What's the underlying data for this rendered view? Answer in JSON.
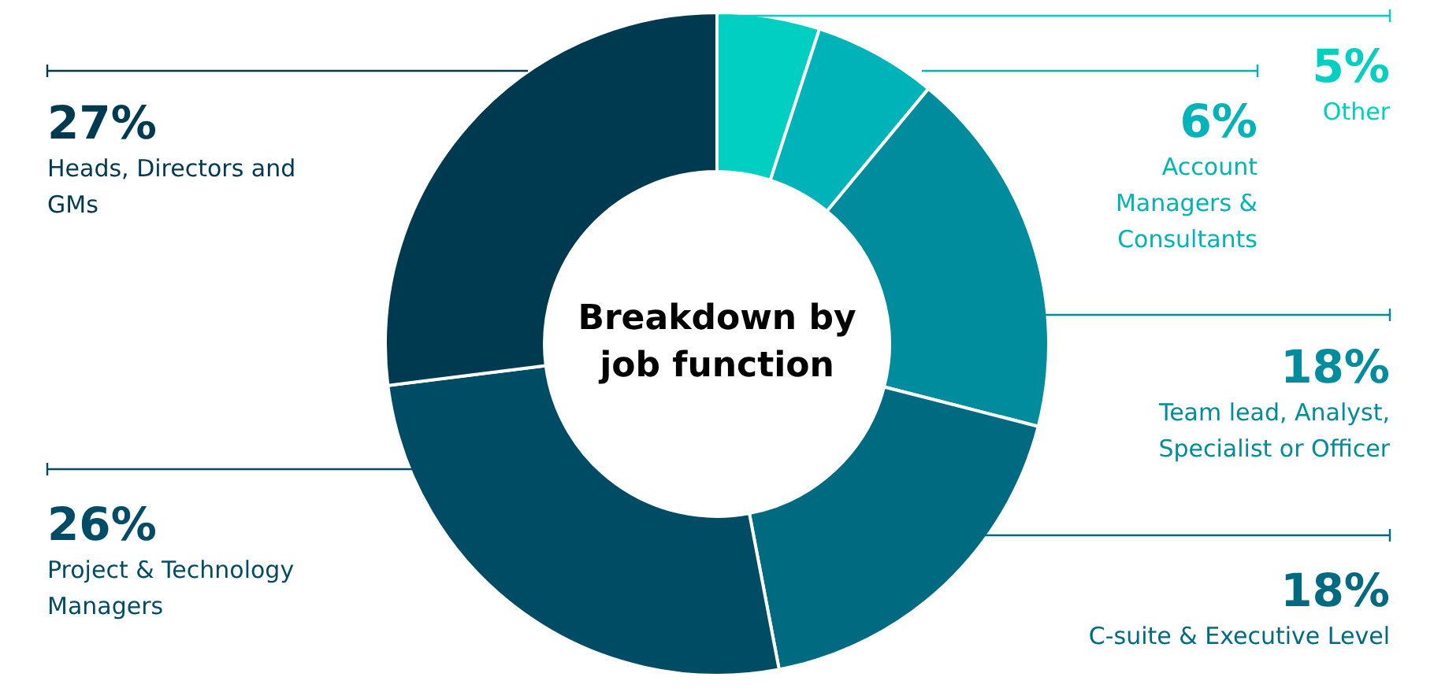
{
  "chart_data": {
    "type": "donut",
    "title": "Breakdown by job function",
    "categories": [
      "Other",
      "Account Managers & Consultants",
      "Team lead, Analyst, Specialist or Officer",
      "C-suite & Executive Level",
      "Project & Technology Managers",
      "Heads, Directors and GMs"
    ],
    "values": [
      5,
      6,
      18,
      18,
      26,
      27
    ],
    "colors": [
      "#00cfc2",
      "#00b3b9",
      "#008c9c",
      "#006a81",
      "#004c65",
      "#003a50"
    ],
    "value_labels": [
      "5%",
      "6%",
      "18%",
      "18%",
      "26%",
      "27%"
    ],
    "legend": false
  }
}
